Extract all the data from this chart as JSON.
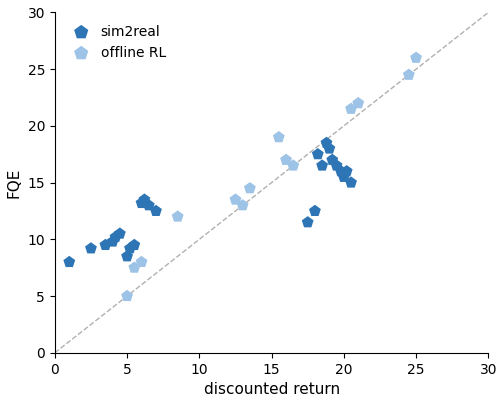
{
  "sim2real_x": [
    1.0,
    2.5,
    3.5,
    4.0,
    4.2,
    4.5,
    5.0,
    5.2,
    5.5,
    6.0,
    6.2,
    6.5,
    7.0,
    17.5,
    18.0,
    18.2,
    18.5,
    18.8,
    19.0,
    19.2,
    19.5,
    19.8,
    20.0,
    20.2,
    20.5
  ],
  "sim2real_y": [
    8.0,
    9.2,
    9.5,
    9.8,
    10.2,
    10.5,
    8.5,
    9.2,
    9.5,
    13.2,
    13.5,
    13.0,
    12.5,
    11.5,
    12.5,
    17.5,
    16.5,
    18.5,
    18.0,
    17.0,
    16.5,
    16.0,
    15.5,
    16.0,
    15.0
  ],
  "offline_x": [
    5.0,
    5.5,
    6.0,
    8.5,
    12.5,
    13.0,
    13.5,
    15.5,
    16.0,
    16.5,
    20.5,
    21.0,
    24.5,
    25.0
  ],
  "offline_y": [
    5.0,
    7.5,
    8.0,
    12.0,
    13.5,
    13.0,
    14.5,
    19.0,
    17.0,
    16.5,
    21.5,
    22.0,
    24.5,
    26.0
  ],
  "sim2real_color": "#2e75b6",
  "offline_color": "#9dc3e6",
  "dashed_line_color": "#b0b0b0",
  "xlabel": "discounted return",
  "ylabel": "FQE",
  "xlim": [
    0,
    30
  ],
  "ylim": [
    0,
    30
  ],
  "xticks": [
    0,
    5,
    10,
    15,
    20,
    25,
    30
  ],
  "yticks": [
    0,
    5,
    10,
    15,
    20,
    25,
    30
  ],
  "marker": "p",
  "marker_size": 80,
  "legend_sim2real": "sim2real",
  "legend_offline": "offline RL",
  "figwidth": 5.04,
  "figheight": 4.04,
  "dpi": 100
}
